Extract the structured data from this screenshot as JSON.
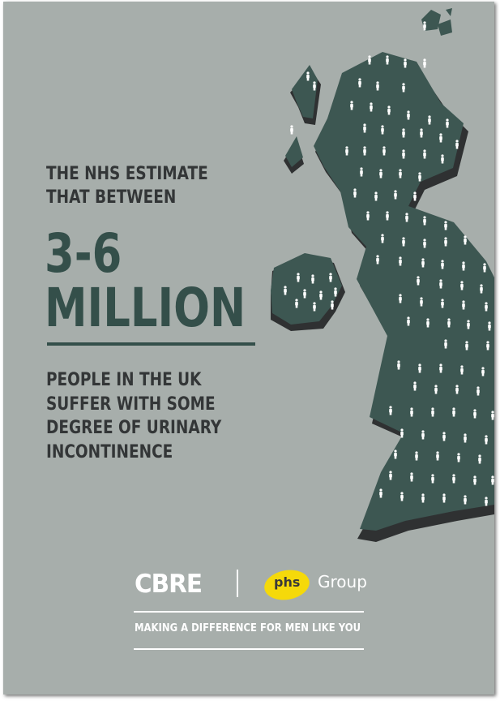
{
  "headline": {
    "line1": "THE NHS ESTIMATE",
    "line2": "THAT BETWEEN"
  },
  "figure": {
    "range": "3-6",
    "unit": "MILLION"
  },
  "subtext": {
    "lines": [
      "PEOPLE IN THE UK",
      "SUFFER WITH SOME",
      "DEGREE OF URINARY",
      "INCONTINENCE"
    ]
  },
  "logos": {
    "cbre": "CBRE",
    "phs": "phs",
    "group": "Group"
  },
  "tagline": "MAKING A DIFFERENCE FOR MEN LIKE YOU",
  "colors": {
    "background": "#a7aeab",
    "map_fill": "#3d5752",
    "map_shadow": "#2f3132",
    "accent": "#344f4a",
    "text_dark": "#333637",
    "phs_yellow": "#f5d90a",
    "people_icon": "#ffffff"
  },
  "icons": {
    "map": "uk-map-illustration",
    "person": "person-icon"
  }
}
